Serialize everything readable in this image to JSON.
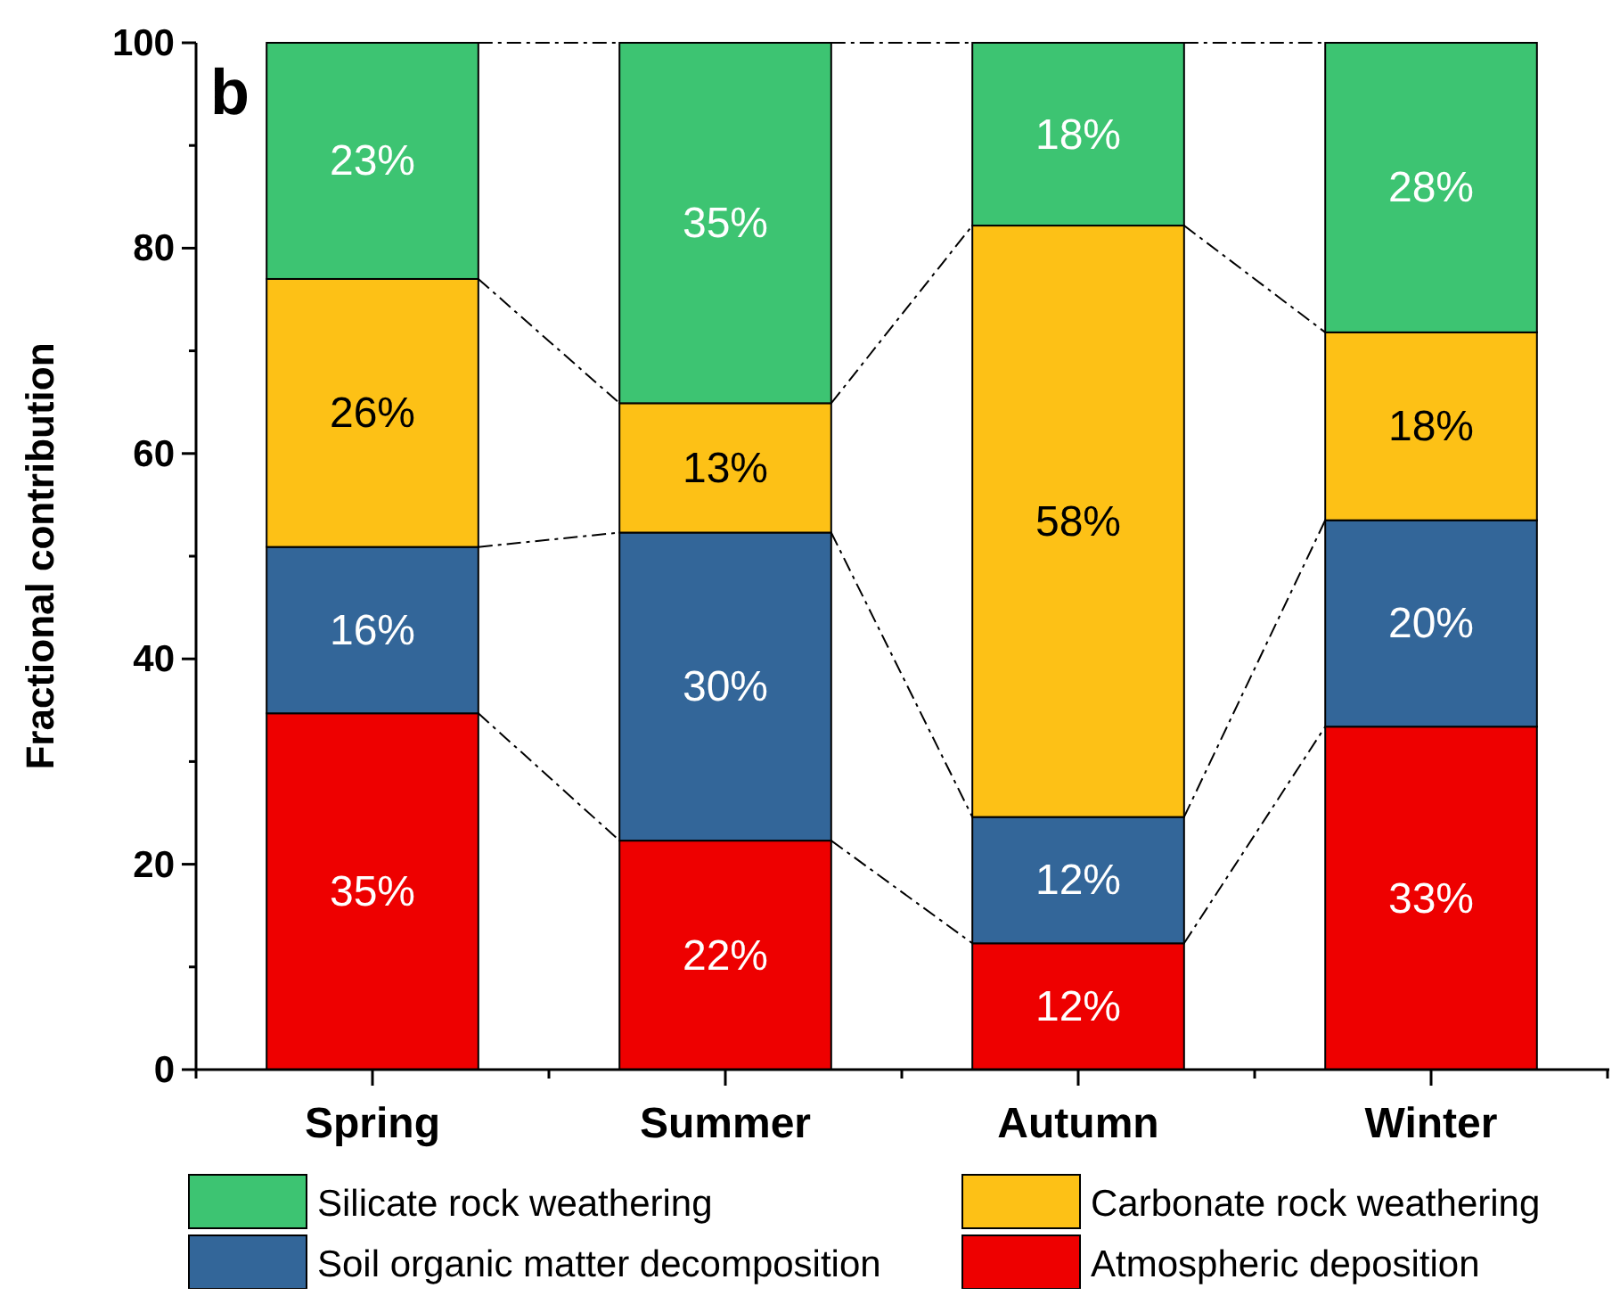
{
  "chart_data": {
    "type": "bar",
    "stacked": true,
    "ylabel": "Fractional contribution",
    "annotations": [
      "b"
    ],
    "categories": [
      "Spring",
      "Summer",
      "Autumn",
      "Winter"
    ],
    "series": [
      {
        "name": "Atmospheric deposition",
        "color": "#ee0000",
        "values": [
          34.7,
          22.3,
          12.3,
          33.4
        ],
        "value_labels": [
          "35%",
          "22%",
          "12%",
          "33%"
        ]
      },
      {
        "name": "Soil organic matter decomposition",
        "color": "#336699",
        "values": [
          16.2,
          30.0,
          12.3,
          20.1
        ],
        "value_labels": [
          "16%",
          "30%",
          "12%",
          "20%"
        ]
      },
      {
        "name": "Carbonate rock weathering",
        "color": "#fdc116",
        "values": [
          26.1,
          12.6,
          57.6,
          18.3
        ],
        "value_labels": [
          "26%",
          "13%",
          "58%",
          "18%"
        ]
      },
      {
        "name": "Silicate rock weathering",
        "color": "#3dc472",
        "values": [
          23.0,
          35.1,
          17.8,
          28.2
        ],
        "value_labels": [
          "23%",
          "35%",
          "18%",
          "28%"
        ]
      }
    ],
    "ylim": [
      0,
      100
    ],
    "yticks": [
      0,
      20,
      40,
      60,
      80,
      100
    ],
    "grid": false,
    "legend": "bottom"
  }
}
